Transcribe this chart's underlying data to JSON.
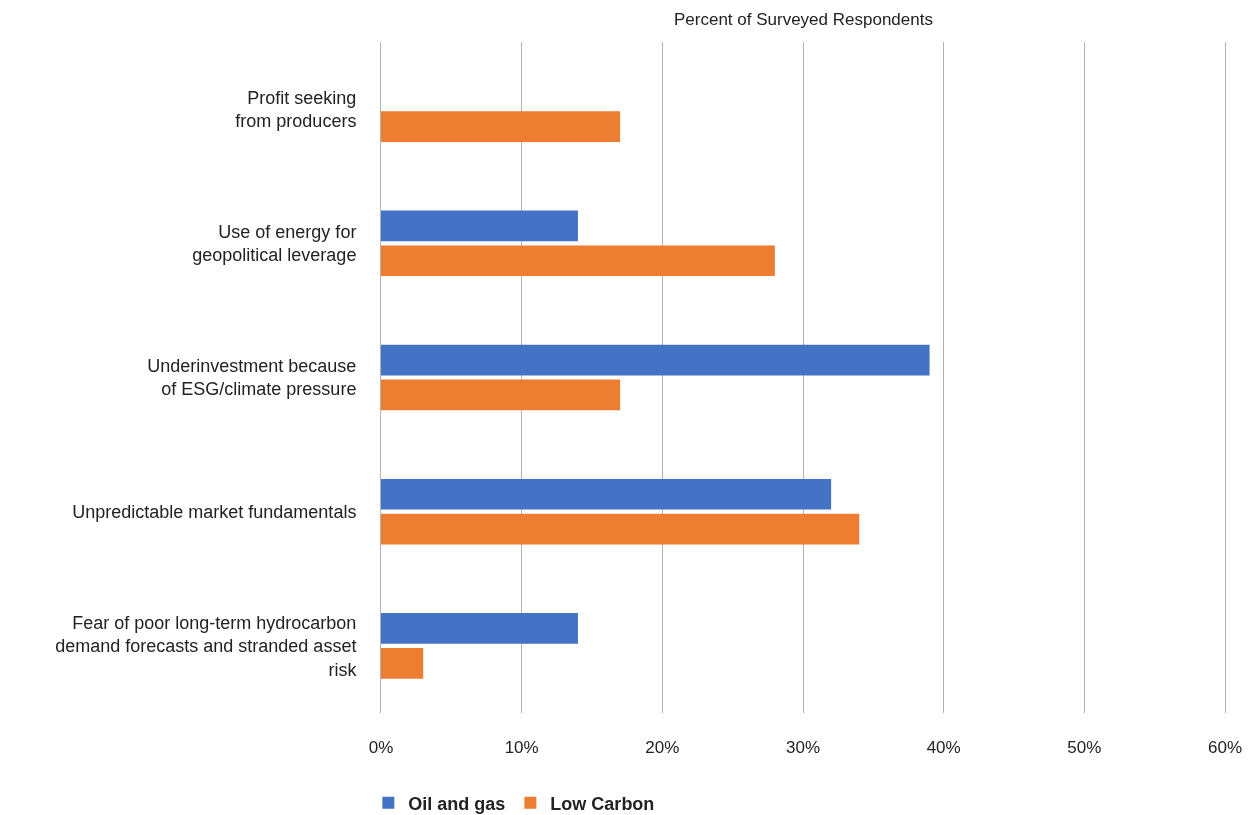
{
  "chart_data": {
    "type": "bar",
    "orientation": "horizontal",
    "xlabel": "Percent of Surveyed Respondents",
    "categories": [
      "Profit seeking\nfrom producers",
      "Use of energy for\ngeopolitical leverage",
      "Underinvestment because\nof ESG/climate pressure",
      "Unpredictable market fundamentals",
      "Fear of poor long-term hydrocarbon\ndemand forecasts and stranded asset\nrisk"
    ],
    "series": [
      {
        "name": "Oil and gas",
        "color": "#4472c4",
        "values": [
          0,
          14,
          39,
          32,
          14
        ]
      },
      {
        "name": "Low Carbon",
        "color": "#ed7d31",
        "values": [
          17,
          28,
          17,
          34,
          3
        ]
      }
    ],
    "xlim": [
      0,
      60
    ],
    "xticks": [
      {
        "value": 0,
        "label": "0%"
      },
      {
        "value": 10,
        "label": "10%"
      },
      {
        "value": 20,
        "label": "20%"
      },
      {
        "value": 30,
        "label": "30%"
      },
      {
        "value": 40,
        "label": "40%"
      },
      {
        "value": 50,
        "label": "50%"
      },
      {
        "value": 60,
        "label": "60%"
      }
    ],
    "grid": "x",
    "legend": "bottom left"
  }
}
